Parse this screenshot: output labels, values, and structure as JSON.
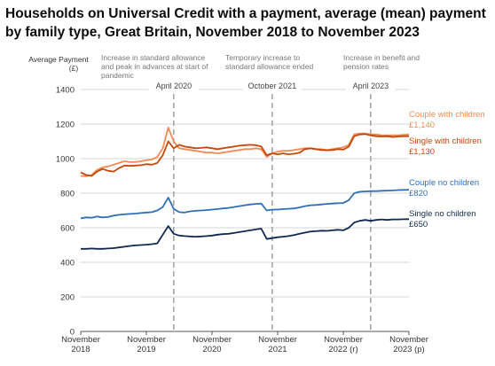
{
  "page_title": "Households on Universal Credit with a payment, average (mean) payment by family type, Great Britain, November 2018 to November 2023",
  "chart_data": {
    "type": "line",
    "title": "Households on Universal Credit with a payment, average (mean) payment by family type, Great Britain, November 2018 to November 2023",
    "ylabel": "Average Payment",
    "yunit": "(£)",
    "ylim": [
      0,
      1400
    ],
    "yticks": [
      0,
      200,
      400,
      600,
      800,
      1000,
      1200,
      1400
    ],
    "yticklabels": [
      "0",
      "200",
      "400",
      "600",
      "800",
      "1000",
      "1200",
      "1400"
    ],
    "xlim": [
      "2018-11",
      "2023-11"
    ],
    "xticks": [
      "2018-11",
      "2019-11",
      "2020-11",
      "2021-11",
      "2022-11",
      "2023-11"
    ],
    "xticklabels": [
      [
        "November",
        "2018"
      ],
      [
        "November",
        "2019"
      ],
      [
        "November",
        "2020"
      ],
      [
        "November",
        "2021"
      ],
      [
        "November",
        "2022 (r)"
      ],
      [
        "November",
        "2023 (p)"
      ]
    ],
    "grid": true,
    "events": [
      {
        "x": "2020-04",
        "label": "April 2020",
        "annotation": [
          "Increase in standard allowance",
          "and peak in advances at start of",
          "pandemic"
        ]
      },
      {
        "x": "2021-10",
        "label": "October 2021",
        "annotation": [
          "Temporary increase to",
          "standard allowance ended"
        ]
      },
      {
        "x": "2023-04",
        "label": "April 2023",
        "annotation": [
          "Increase in benefit and",
          "pension rates"
        ]
      }
    ],
    "series": [
      {
        "name": "Couple with children",
        "end_label": "£1,140",
        "color": "#f18b55",
        "values": [
          [
            0,
            900
          ],
          [
            1,
            898
          ],
          [
            2,
            905
          ],
          [
            3,
            935
          ],
          [
            4,
            950
          ],
          [
            5,
            955
          ],
          [
            6,
            965
          ],
          [
            7,
            975
          ],
          [
            8,
            985
          ],
          [
            9,
            980
          ],
          [
            10,
            980
          ],
          [
            11,
            985
          ],
          [
            12,
            990
          ],
          [
            13,
            995
          ],
          [
            14,
            1010
          ],
          [
            15,
            1060
          ],
          [
            16,
            1180
          ],
          [
            17,
            1100
          ],
          [
            18,
            1060
          ],
          [
            19,
            1055
          ],
          [
            20,
            1050
          ],
          [
            21,
            1045
          ],
          [
            22,
            1040
          ],
          [
            23,
            1035
          ],
          [
            24,
            1035
          ],
          [
            25,
            1030
          ],
          [
            26,
            1035
          ],
          [
            27,
            1040
          ],
          [
            28,
            1045
          ],
          [
            29,
            1050
          ],
          [
            30,
            1055
          ],
          [
            31,
            1055
          ],
          [
            32,
            1060
          ],
          [
            33,
            1055
          ],
          [
            34,
            1010
          ],
          [
            35,
            1030
          ],
          [
            36,
            1040
          ],
          [
            37,
            1045
          ],
          [
            38,
            1045
          ],
          [
            39,
            1050
          ],
          [
            40,
            1055
          ],
          [
            41,
            1060
          ],
          [
            42,
            1060
          ],
          [
            43,
            1055
          ],
          [
            44,
            1055
          ],
          [
            45,
            1050
          ],
          [
            46,
            1055
          ],
          [
            47,
            1060
          ],
          [
            48,
            1065
          ],
          [
            49,
            1080
          ],
          [
            50,
            1140
          ],
          [
            51,
            1145
          ],
          [
            52,
            1145
          ],
          [
            53,
            1140
          ],
          [
            54,
            1140
          ],
          [
            55,
            1135
          ],
          [
            56,
            1135
          ],
          [
            57,
            1135
          ],
          [
            58,
            1135
          ],
          [
            59,
            1138
          ],
          [
            60,
            1140
          ]
        ]
      },
      {
        "name": "Single with children",
        "end_label": "£1,130",
        "color": "#c6470b",
        "values": [
          [
            0,
            920
          ],
          [
            1,
            905
          ],
          [
            2,
            900
          ],
          [
            3,
            925
          ],
          [
            4,
            940
          ],
          [
            5,
            930
          ],
          [
            6,
            925
          ],
          [
            7,
            945
          ],
          [
            8,
            960
          ],
          [
            9,
            958
          ],
          [
            10,
            960
          ],
          [
            11,
            962
          ],
          [
            12,
            968
          ],
          [
            13,
            965
          ],
          [
            14,
            975
          ],
          [
            15,
            1020
          ],
          [
            16,
            1100
          ],
          [
            17,
            1060
          ],
          [
            18,
            1080
          ],
          [
            19,
            1070
          ],
          [
            20,
            1065
          ],
          [
            21,
            1060
          ],
          [
            22,
            1062
          ],
          [
            23,
            1065
          ],
          [
            24,
            1060
          ],
          [
            25,
            1055
          ],
          [
            26,
            1060
          ],
          [
            27,
            1065
          ],
          [
            28,
            1070
          ],
          [
            29,
            1075
          ],
          [
            30,
            1078
          ],
          [
            31,
            1080
          ],
          [
            32,
            1078
          ],
          [
            33,
            1070
          ],
          [
            34,
            1020
          ],
          [
            35,
            1030
          ],
          [
            36,
            1025
          ],
          [
            37,
            1030
          ],
          [
            38,
            1025
          ],
          [
            39,
            1028
          ],
          [
            40,
            1035
          ],
          [
            41,
            1055
          ],
          [
            42,
            1060
          ],
          [
            43,
            1055
          ],
          [
            44,
            1050
          ],
          [
            45,
            1048
          ],
          [
            46,
            1050
          ],
          [
            47,
            1055
          ],
          [
            48,
            1052
          ],
          [
            49,
            1070
          ],
          [
            50,
            1130
          ],
          [
            51,
            1140
          ],
          [
            52,
            1142
          ],
          [
            53,
            1135
          ],
          [
            54,
            1130
          ],
          [
            55,
            1128
          ],
          [
            56,
            1130
          ],
          [
            57,
            1125
          ],
          [
            58,
            1128
          ],
          [
            59,
            1130
          ],
          [
            60,
            1130
          ]
        ]
      },
      {
        "name": "Couple no children",
        "end_label": "£820",
        "color": "#2e6fb5",
        "values": [
          [
            0,
            655
          ],
          [
            1,
            660
          ],
          [
            2,
            658
          ],
          [
            3,
            665
          ],
          [
            4,
            660
          ],
          [
            5,
            662
          ],
          [
            6,
            670
          ],
          [
            7,
            675
          ],
          [
            8,
            678
          ],
          [
            9,
            680
          ],
          [
            10,
            682
          ],
          [
            11,
            685
          ],
          [
            12,
            688
          ],
          [
            13,
            690
          ],
          [
            14,
            700
          ],
          [
            15,
            720
          ],
          [
            16,
            775
          ],
          [
            17,
            710
          ],
          [
            18,
            690
          ],
          [
            19,
            688
          ],
          [
            20,
            695
          ],
          [
            21,
            698
          ],
          [
            22,
            700
          ],
          [
            23,
            702
          ],
          [
            24,
            705
          ],
          [
            25,
            708
          ],
          [
            26,
            712
          ],
          [
            27,
            715
          ],
          [
            28,
            720
          ],
          [
            29,
            725
          ],
          [
            30,
            730
          ],
          [
            31,
            735
          ],
          [
            32,
            738
          ],
          [
            33,
            740
          ],
          [
            34,
            700
          ],
          [
            35,
            705
          ],
          [
            36,
            705
          ],
          [
            37,
            708
          ],
          [
            38,
            710
          ],
          [
            39,
            712
          ],
          [
            40,
            718
          ],
          [
            41,
            725
          ],
          [
            42,
            730
          ],
          [
            43,
            732
          ],
          [
            44,
            735
          ],
          [
            45,
            738
          ],
          [
            46,
            740
          ],
          [
            47,
            742
          ],
          [
            48,
            743
          ],
          [
            49,
            760
          ],
          [
            50,
            800
          ],
          [
            51,
            808
          ],
          [
            52,
            810
          ],
          [
            53,
            812
          ],
          [
            54,
            812
          ],
          [
            55,
            814
          ],
          [
            56,
            815
          ],
          [
            57,
            816
          ],
          [
            58,
            818
          ],
          [
            59,
            819
          ],
          [
            60,
            820
          ]
        ]
      },
      {
        "name": "Single no children",
        "end_label": "£650",
        "color": "#0e2a50",
        "values": [
          [
            0,
            478
          ],
          [
            1,
            478
          ],
          [
            2,
            480
          ],
          [
            3,
            478
          ],
          [
            4,
            478
          ],
          [
            5,
            480
          ],
          [
            6,
            482
          ],
          [
            7,
            486
          ],
          [
            8,
            490
          ],
          [
            9,
            495
          ],
          [
            10,
            498
          ],
          [
            11,
            500
          ],
          [
            12,
            502
          ],
          [
            13,
            505
          ],
          [
            14,
            510
          ],
          [
            15,
            560
          ],
          [
            16,
            610
          ],
          [
            17,
            565
          ],
          [
            18,
            555
          ],
          [
            19,
            552
          ],
          [
            20,
            550
          ],
          [
            21,
            548
          ],
          [
            22,
            550
          ],
          [
            23,
            552
          ],
          [
            24,
            555
          ],
          [
            25,
            560
          ],
          [
            26,
            563
          ],
          [
            27,
            565
          ],
          [
            28,
            570
          ],
          [
            29,
            575
          ],
          [
            30,
            580
          ],
          [
            31,
            585
          ],
          [
            32,
            590
          ],
          [
            33,
            595
          ],
          [
            34,
            535
          ],
          [
            35,
            540
          ],
          [
            36,
            545
          ],
          [
            37,
            548
          ],
          [
            38,
            552
          ],
          [
            39,
            558
          ],
          [
            40,
            565
          ],
          [
            41,
            572
          ],
          [
            42,
            578
          ],
          [
            43,
            580
          ],
          [
            44,
            583
          ],
          [
            45,
            582
          ],
          [
            46,
            585
          ],
          [
            47,
            588
          ],
          [
            48,
            585
          ],
          [
            49,
            600
          ],
          [
            50,
            630
          ],
          [
            51,
            640
          ],
          [
            52,
            645
          ],
          [
            53,
            640
          ],
          [
            54,
            645
          ],
          [
            55,
            648
          ],
          [
            56,
            645
          ],
          [
            57,
            648
          ],
          [
            58,
            648
          ],
          [
            59,
            649
          ],
          [
            60,
            650
          ]
        ]
      }
    ]
  }
}
